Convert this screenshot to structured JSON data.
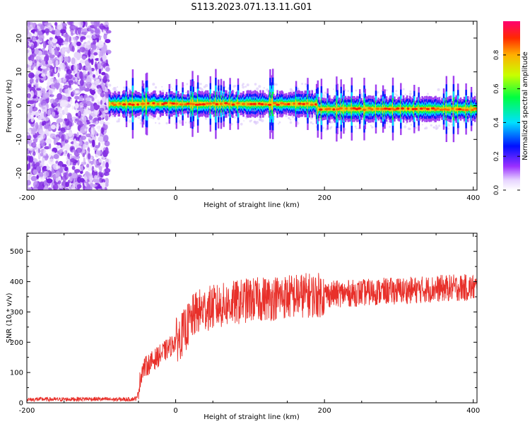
{
  "title": "S113.2023.071.13.11.G01",
  "colors": {
    "axis": "#000000",
    "snr_line": "#e8302a",
    "background": "#ffffff"
  },
  "chart_data": [
    {
      "type": "heatmap",
      "xlabel": "Height of straight line (km)",
      "ylabel": "Frequency (Hz)",
      "xlim": [
        -200,
        405
      ],
      "ylim": [
        -25,
        25
      ],
      "x_ticks": [
        -200,
        0,
        200,
        400
      ],
      "y_ticks": [
        -20,
        -10,
        0,
        10,
        20
      ],
      "colorbar": {
        "label": "Normalized spectral amplitude",
        "range": [
          0,
          1
        ],
        "ticks": [
          0.0,
          0.2,
          0.4,
          0.6,
          0.8
        ],
        "colormap": "rainbow-on-white"
      },
      "features": {
        "noise_region_x": [
          -200,
          -90
        ],
        "signal_line_frequency": 0.5,
        "signal_segment_1_x": [
          -90,
          190
        ],
        "signal_segment_2_x": [
          190,
          405
        ],
        "signal_segment_2_frequency": -1.0
      }
    },
    {
      "type": "line",
      "xlabel": "Height of straight line (km)",
      "ylabel": "SNR (10 * v/v)",
      "xlim": [
        -200,
        405
      ],
      "ylim": [
        0,
        560
      ],
      "x_ticks": [
        -200,
        0,
        200,
        400
      ],
      "y_ticks": [
        0,
        100,
        200,
        300,
        400,
        500
      ],
      "series": [
        {
          "x": [
            -200,
            -180,
            -160,
            -140,
            -120,
            -100,
            -80,
            -60,
            -52,
            -48,
            -45,
            -40,
            -35,
            -30,
            -25,
            -20,
            -15,
            -10,
            -5,
            -2,
            0,
            5,
            10,
            15,
            20,
            25,
            30,
            35,
            40,
            50,
            60,
            70,
            80,
            90,
            100,
            110,
            120,
            130,
            140,
            150,
            160,
            170,
            180,
            190,
            200,
            220,
            240,
            260,
            280,
            300,
            320,
            340,
            360,
            380,
            400,
            405
          ],
          "y": [
            10,
            12,
            11,
            12,
            13,
            12,
            11,
            12,
            15,
            70,
            110,
            120,
            130,
            140,
            150,
            160,
            170,
            180,
            190,
            200,
            205,
            215,
            230,
            250,
            270,
            290,
            300,
            305,
            310,
            315,
            320,
            325,
            330,
            335,
            340,
            340,
            345,
            345,
            350,
            350,
            352,
            355,
            355,
            355,
            358,
            360,
            362,
            365,
            368,
            370,
            372,
            375,
            378,
            380,
            380,
            380
          ]
        }
      ]
    }
  ]
}
